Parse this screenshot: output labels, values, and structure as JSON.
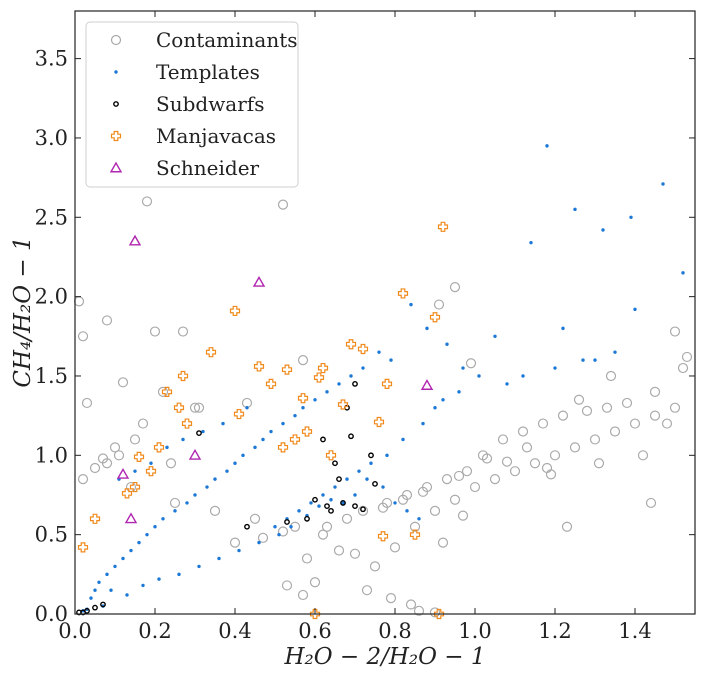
{
  "chart_data": {
    "type": "scatter",
    "xlabel": "H₂O − 2/H₂O − 1",
    "ylabel": "CH₄/H₂O − 1",
    "xlim": [
      0,
      1.55
    ],
    "ylim": [
      0,
      3.8
    ],
    "xticks": [
      "0.0",
      "0.2",
      "0.4",
      "0.6",
      "0.8",
      "1.0",
      "1.2",
      "1.4"
    ],
    "yticks": [
      "0.0",
      "0.5",
      "1.0",
      "1.5",
      "2.0",
      "2.5",
      "3.0",
      "3.5"
    ],
    "grid": false,
    "legend_position": "top-left",
    "series": [
      {
        "name": "Contaminants",
        "marker": "open-circle",
        "color": "#aaaaaa",
        "x": [
          0.18,
          0.52,
          0.01,
          0.08,
          0.02,
          0.12,
          0.2,
          0.27,
          0.57,
          0.95,
          0.31,
          0.43,
          0.3,
          0.22,
          0.17,
          0.11,
          0.05,
          0.02,
          0.08,
          0.14,
          0.25,
          0.35,
          0.45,
          0.55,
          0.62,
          0.4,
          0.47,
          0.52,
          0.66,
          0.7,
          0.58,
          0.75,
          0.8,
          0.85,
          0.9,
          0.95,
          1.0,
          1.05,
          1.1,
          1.15,
          1.2,
          1.25,
          1.3,
          1.35,
          1.4,
          1.45,
          1.5,
          1.53,
          1.52,
          1.45,
          1.38,
          1.33,
          1.28,
          1.22,
          1.17,
          1.12,
          1.07,
          1.02,
          0.98,
          0.93,
          0.88,
          0.83,
          0.78,
          0.72,
          0.68,
          0.63,
          0.91,
          0.99,
          1.08,
          1.19,
          1.31,
          1.42,
          1.48,
          1.34,
          1.26,
          1.13,
          1.03,
          0.96,
          0.87,
          0.82,
          0.77,
          1.18,
          1.23,
          0.97,
          0.92,
          0.86,
          0.9,
          0.1,
          0.07,
          0.15,
          0.24,
          0.03,
          0.6,
          0.73,
          0.79,
          0.84,
          0.57,
          0.53,
          1.5,
          1.44
        ],
        "y": [
          2.6,
          2.58,
          1.97,
          1.85,
          1.75,
          1.46,
          1.78,
          1.78,
          1.6,
          2.06,
          1.3,
          1.33,
          1.3,
          1.4,
          1.2,
          1.0,
          0.92,
          0.85,
          0.95,
          0.8,
          0.7,
          0.65,
          0.6,
          0.55,
          0.5,
          0.45,
          0.48,
          0.52,
          0.4,
          0.38,
          0.35,
          0.3,
          0.42,
          0.55,
          0.65,
          0.72,
          0.8,
          0.85,
          0.9,
          0.95,
          1.0,
          1.05,
          1.1,
          1.15,
          1.2,
          1.25,
          1.3,
          1.62,
          1.55,
          1.4,
          1.33,
          1.3,
          1.28,
          1.25,
          1.2,
          1.15,
          1.1,
          1.0,
          0.9,
          0.85,
          0.8,
          0.75,
          0.7,
          0.65,
          0.6,
          0.55,
          1.95,
          1.58,
          0.96,
          0.88,
          0.95,
          1.0,
          1.2,
          1.5,
          1.35,
          1.05,
          0.98,
          0.87,
          0.77,
          0.72,
          0.67,
          0.92,
          0.55,
          0.62,
          0.45,
          0.02,
          0.01,
          1.05,
          0.98,
          1.1,
          0.95,
          1.33,
          0.2,
          0.15,
          0.1,
          0.06,
          0.12,
          0.18,
          1.78,
          0.7
        ]
      },
      {
        "name": "Templates",
        "marker": "dot",
        "color": "#1c78d6",
        "x": [
          1.18,
          1.47,
          1.25,
          1.39,
          1.32,
          1.14,
          1.52,
          1.4,
          1.22,
          1.05,
          1.3,
          0.84,
          0.88,
          0.93,
          0.97,
          1.01,
          0.76,
          0.79,
          0.72,
          0.69,
          0.66,
          0.63,
          0.6,
          0.57,
          0.55,
          0.52,
          0.49,
          0.47,
          0.45,
          0.42,
          0.4,
          0.38,
          0.35,
          0.33,
          0.3,
          0.28,
          0.25,
          0.22,
          0.2,
          0.18,
          0.16,
          0.14,
          0.12,
          0.1,
          0.08,
          0.06,
          0.05,
          0.04,
          0.9,
          0.87,
          0.82,
          0.78,
          0.74,
          0.71,
          0.68,
          0.65,
          0.62,
          0.59,
          0.56,
          0.53,
          0.5,
          0.86,
          0.83,
          0.8,
          0.77,
          0.73,
          0.7,
          0.67,
          0.64,
          0.61,
          0.58,
          1.12,
          1.08,
          1.2,
          1.27,
          1.35,
          0.96,
          0.92,
          0.43,
          0.37,
          0.32,
          0.27,
          0.23,
          0.19,
          0.15,
          0.11,
          0.07,
          0.03,
          0.02,
          0.09,
          0.13,
          0.17,
          0.21,
          0.26,
          0.31,
          0.36,
          0.41,
          0.46,
          0.51,
          0.54
        ],
        "y": [
          2.95,
          2.71,
          2.55,
          2.5,
          2.42,
          2.34,
          2.15,
          1.92,
          1.8,
          1.75,
          1.6,
          1.95,
          1.8,
          1.7,
          1.55,
          1.5,
          1.65,
          1.6,
          1.55,
          1.5,
          1.45,
          1.4,
          1.35,
          1.3,
          1.25,
          1.2,
          1.15,
          1.1,
          1.05,
          1.0,
          0.95,
          0.9,
          0.85,
          0.8,
          0.75,
          0.7,
          0.65,
          0.6,
          0.55,
          0.5,
          0.45,
          0.4,
          0.35,
          0.3,
          0.25,
          0.2,
          0.15,
          0.1,
          1.3,
          1.2,
          1.1,
          1.0,
          0.95,
          0.9,
          0.85,
          0.8,
          0.75,
          0.7,
          0.65,
          0.6,
          0.55,
          0.6,
          0.65,
          0.7,
          0.8,
          0.85,
          0.75,
          0.7,
          0.72,
          0.68,
          0.62,
          1.5,
          1.45,
          1.55,
          1.6,
          1.65,
          1.4,
          1.35,
          1.3,
          1.2,
          1.15,
          1.1,
          1.05,
          0.95,
          0.9,
          0.85,
          0.05,
          0.03,
          0.02,
          0.15,
          0.12,
          0.18,
          0.22,
          0.25,
          0.3,
          0.35,
          0.4,
          0.45,
          0.5,
          0.55
        ]
      },
      {
        "name": "Subdwarfs",
        "marker": "small-open-circle",
        "color": "#000000",
        "x": [
          0.7,
          0.68,
          0.62,
          0.65,
          0.66,
          0.6,
          0.63,
          0.67,
          0.7,
          0.72,
          0.75,
          0.74,
          0.69,
          0.64,
          0.58,
          0.53,
          0.43,
          0.31,
          0.05,
          0.03,
          0.01,
          0.02,
          0.07
        ],
        "y": [
          1.45,
          1.3,
          1.1,
          0.95,
          0.85,
          0.72,
          0.68,
          0.7,
          0.68,
          0.66,
          0.82,
          1.0,
          1.12,
          0.65,
          0.6,
          0.58,
          0.55,
          1.14,
          0.04,
          0.02,
          0.01,
          0.01,
          0.06
        ]
      },
      {
        "name": "Manjavacas",
        "marker": "open-plus",
        "color": "#f08a1c",
        "x": [
          0.92,
          0.82,
          0.4,
          0.34,
          0.46,
          0.53,
          0.61,
          0.67,
          0.76,
          0.72,
          0.78,
          0.57,
          0.27,
          0.23,
          0.26,
          0.28,
          0.21,
          0.16,
          0.19,
          0.15,
          0.13,
          0.05,
          0.02,
          0.41,
          0.64,
          0.77,
          0.85,
          0.91,
          0.9,
          0.62,
          0.69,
          0.6,
          0.52,
          0.55,
          0.49,
          0.58
        ],
        "y": [
          2.44,
          2.02,
          1.91,
          1.65,
          1.56,
          1.54,
          1.49,
          1.32,
          1.21,
          1.67,
          1.45,
          1.36,
          1.5,
          1.4,
          1.3,
          1.2,
          1.05,
          0.99,
          0.9,
          0.8,
          0.76,
          0.6,
          0.42,
          1.26,
          1.0,
          0.49,
          0.5,
          0.0,
          1.87,
          1.55,
          1.7,
          0.0,
          1.05,
          1.1,
          1.45,
          1.15
        ]
      },
      {
        "name": "Schneider",
        "marker": "open-triangle",
        "color": "#b026b0",
        "x": [
          0.15,
          0.46,
          0.88,
          0.3,
          0.12,
          0.14
        ],
        "y": [
          2.35,
          2.09,
          1.44,
          1.0,
          0.88,
          0.6
        ]
      }
    ]
  }
}
